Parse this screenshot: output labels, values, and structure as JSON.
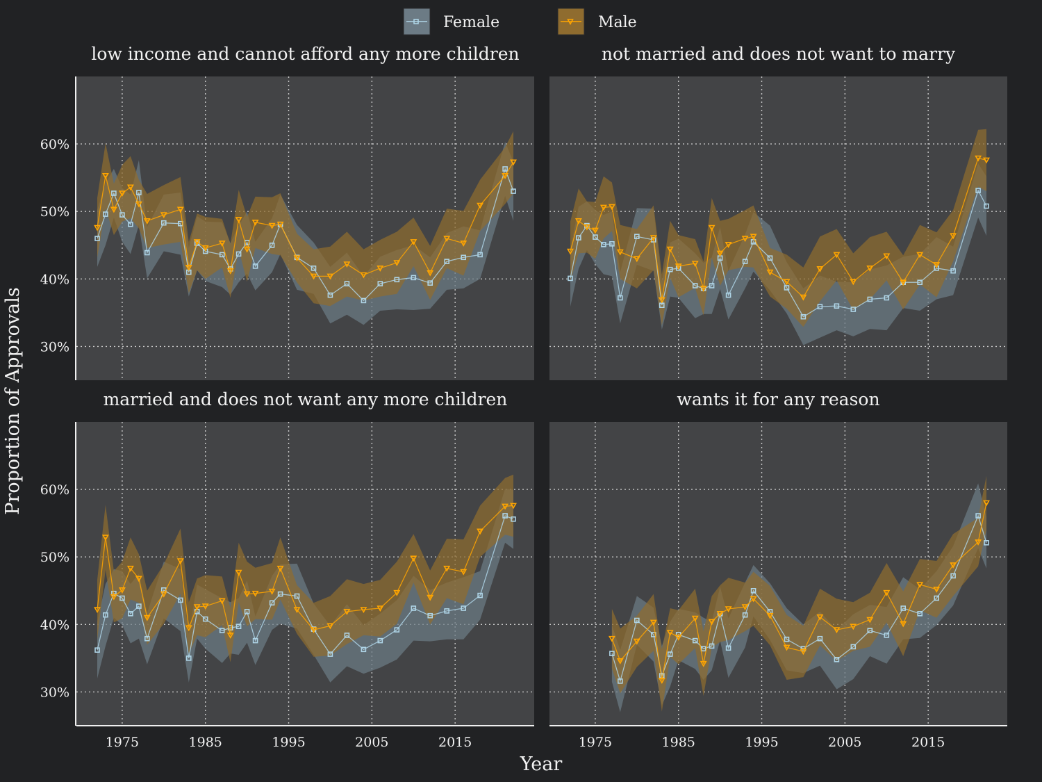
{
  "colors": {
    "female": "#aed4e6",
    "female_band": "#6c7b85",
    "male": "#ffa500",
    "male_band": "#8f6c2f"
  },
  "chart_data": {
    "type": "line",
    "xlabel": "Year",
    "ylabel": "Proportion of Approvals",
    "x_ticks": [
      1975,
      1985,
      1995,
      2005,
      2015
    ],
    "y_ticks": [
      "30%",
      "40%",
      "50%",
      "60%"
    ],
    "xlim": [
      1969.5,
      2024.5
    ],
    "ylim": [
      25,
      70
    ],
    "grid": true,
    "legend_position": "top",
    "legend": [
      "Female",
      "Male"
    ],
    "panels": [
      {
        "title": "low income and cannot afford any more children",
        "years": [
          1972,
          1973,
          1974,
          1975,
          1976,
          1977,
          1978,
          1980,
          1982,
          1983,
          1984,
          1985,
          1987,
          1988,
          1989,
          1990,
          1991,
          1993,
          1994,
          1996,
          1998,
          2000,
          2002,
          2004,
          2006,
          2008,
          2010,
          2012,
          2014,
          2016,
          2018,
          2021,
          2022
        ],
        "female": [
          46.0,
          49.6,
          52.7,
          49.5,
          48.1,
          52.8,
          43.9,
          48.3,
          48.2,
          41.0,
          45.3,
          44.1,
          43.6,
          41.5,
          43.7,
          45.4,
          41.9,
          45.0,
          48.1,
          43.2,
          41.6,
          37.6,
          39.3,
          36.8,
          39.3,
          39.9,
          40.2,
          39.4,
          42.6,
          43.2,
          43.6,
          56.3,
          53.0
        ],
        "male": [
          47.6,
          55.3,
          50.3,
          52.7,
          53.6,
          51.1,
          48.6,
          49.5,
          50.3,
          41.7,
          45.5,
          44.6,
          45.3,
          41.2,
          48.8,
          44.4,
          48.4,
          47.9,
          48.1,
          43.1,
          40.4,
          40.4,
          42.2,
          40.6,
          41.6,
          42.4,
          45.5,
          40.9,
          46.0,
          45.3,
          50.9,
          55.3,
          57.3
        ]
      },
      {
        "title": "not married and does not want to marry",
        "years": [
          1972,
          1973,
          1974,
          1975,
          1976,
          1977,
          1978,
          1980,
          1982,
          1983,
          1984,
          1985,
          1987,
          1988,
          1989,
          1990,
          1991,
          1993,
          1994,
          1996,
          1998,
          2000,
          2002,
          2004,
          2006,
          2008,
          2010,
          2012,
          2014,
          2016,
          2018,
          2021,
          2022
        ],
        "female": [
          40.1,
          46.1,
          47.9,
          46.2,
          45.1,
          45.2,
          37.2,
          46.3,
          45.8,
          36.1,
          41.4,
          41.6,
          39.0,
          38.6,
          39.0,
          43.1,
          37.6,
          42.6,
          45.5,
          43.1,
          38.7,
          34.4,
          35.9,
          36.0,
          35.5,
          37.0,
          37.2,
          39.5,
          39.5,
          41.6,
          41.2,
          53.1,
          50.8
        ],
        "male": [
          44.1,
          48.6,
          47.7,
          47.2,
          50.6,
          50.7,
          44.0,
          43.0,
          46.1,
          36.9,
          44.4,
          41.9,
          42.3,
          38.6,
          47.6,
          43.8,
          45.1,
          46.0,
          46.3,
          41.0,
          39.6,
          37.3,
          41.5,
          43.6,
          39.6,
          41.6,
          43.4,
          39.5,
          43.6,
          42.1,
          46.4,
          57.9,
          57.6
        ]
      },
      {
        "title": "married and does not want any more children",
        "years": [
          1972,
          1973,
          1974,
          1975,
          1976,
          1977,
          1978,
          1980,
          1982,
          1983,
          1984,
          1985,
          1987,
          1988,
          1989,
          1990,
          1991,
          1993,
          1994,
          1996,
          1998,
          2000,
          2002,
          2004,
          2006,
          2008,
          2010,
          2012,
          2014,
          2016,
          2018,
          2021,
          2022
        ],
        "female": [
          36.2,
          41.4,
          44.6,
          43.9,
          41.6,
          42.7,
          37.9,
          45.1,
          43.6,
          35.0,
          41.9,
          40.8,
          39.1,
          39.5,
          39.7,
          41.9,
          37.6,
          43.2,
          44.5,
          44.2,
          39.3,
          35.6,
          38.4,
          36.3,
          37.6,
          39.2,
          42.4,
          41.3,
          42.0,
          42.4,
          44.3,
          56.1,
          55.6
        ],
        "male": [
          42.2,
          52.9,
          44.1,
          45.1,
          48.3,
          46.8,
          41.0,
          44.5,
          49.4,
          39.5,
          42.6,
          42.7,
          43.5,
          38.4,
          47.7,
          44.5,
          44.6,
          44.9,
          48.3,
          42.2,
          39.2,
          39.8,
          41.9,
          42.2,
          42.4,
          44.7,
          49.8,
          44.0,
          48.3,
          47.8,
          53.8,
          57.5,
          57.6
        ]
      },
      {
        "title": "wants it for any reason",
        "years": [
          1977,
          1978,
          1980,
          1982,
          1983,
          1984,
          1985,
          1987,
          1988,
          1989,
          1990,
          1991,
          1993,
          1994,
          1996,
          1998,
          2000,
          2002,
          2004,
          2006,
          2008,
          2010,
          2012,
          2014,
          2016,
          2018,
          2021,
          2022
        ],
        "female": [
          35.7,
          31.6,
          40.6,
          38.5,
          32.4,
          35.6,
          38.5,
          37.6,
          36.4,
          36.8,
          41.6,
          36.5,
          41.4,
          45.0,
          41.9,
          37.8,
          36.4,
          37.9,
          34.8,
          36.7,
          39.1,
          38.4,
          42.4,
          41.6,
          43.9,
          47.2,
          56.1,
          52.1
        ],
        "male": [
          37.9,
          34.6,
          37.5,
          40.3,
          31.7,
          38.8,
          38.1,
          40.9,
          34.2,
          40.4,
          41.6,
          42.3,
          42.6,
          43.8,
          41.3,
          36.6,
          36.0,
          41.1,
          39.2,
          39.7,
          40.7,
          44.7,
          40.1,
          45.9,
          45.2,
          48.8,
          52.2,
          58.0
        ]
      }
    ]
  }
}
